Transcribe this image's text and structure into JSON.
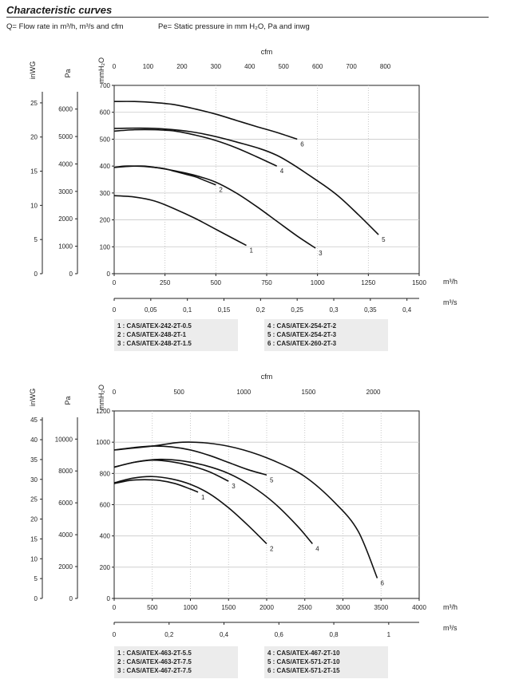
{
  "header": {
    "title": "Characteristic curves",
    "subtitle_left": "Q= Flow rate in m³/h, m³/s and cfm",
    "subtitle_right": "Pe= Static pressure in mm H₂O, Pa and inwg"
  },
  "chart_data": [
    {
      "type": "line",
      "title": "",
      "xlabel": "m³/h",
      "ylabel": "mmH₂O",
      "xlim": [
        0,
        1500
      ],
      "ylim": [
        0,
        700
      ],
      "x_ticks": [
        0,
        250,
        500,
        750,
        1000,
        1250,
        1500
      ],
      "y_ticks": [
        0,
        100,
        200,
        300,
        400,
        500,
        600,
        700
      ],
      "grid": true,
      "secondary_axes": {
        "cfm": {
          "label": "cfm",
          "ticks": [
            0,
            100,
            200,
            300,
            400,
            500,
            600,
            700,
            800
          ]
        },
        "m3s": {
          "label": "m³/s",
          "ticks": [
            "0",
            "0,05",
            "0,1",
            "0,15",
            "0,2",
            "0,25",
            "0,3",
            "0,35",
            "0,4"
          ]
        },
        "inwg": {
          "label": "inWG",
          "ticks": [
            0,
            5,
            10,
            15,
            20,
            25
          ]
        },
        "pa": {
          "label": "Pa",
          "ticks": [
            0,
            1000,
            2000,
            3000,
            4000,
            5000,
            6000
          ]
        }
      },
      "legend": {
        "placement": "bottom",
        "col1": [
          "1 : CAS/ATEX-242-2T-0.5",
          "2 : CAS/ATEX-248-2T-1",
          "3 : CAS/ATEX-248-2T-1.5"
        ],
        "col2": [
          "4 : CAS/ATEX-254-2T-2",
          "5 : CAS/ATEX-254-2T-3",
          "6 : CAS/ATEX-260-2T-3"
        ]
      },
      "series": [
        {
          "name": "1",
          "x": [
            0,
            100,
            200,
            300,
            400,
            500,
            600,
            650
          ],
          "y": [
            290,
            285,
            270,
            240,
            205,
            165,
            125,
            105
          ]
        },
        {
          "name": "2",
          "x": [
            0,
            50,
            100,
            150,
            200,
            250,
            300,
            350,
            400,
            450,
            500
          ],
          "y": [
            395,
            400,
            400,
            400,
            395,
            390,
            380,
            370,
            360,
            345,
            330
          ]
        },
        {
          "name": "3",
          "x": [
            0,
            100,
            200,
            300,
            400,
            500,
            600,
            700,
            800,
            900,
            990
          ],
          "y": [
            395,
            400,
            395,
            382,
            365,
            340,
            300,
            250,
            195,
            140,
            95
          ]
        },
        {
          "name": "4",
          "x": [
            0,
            100,
            200,
            300,
            400,
            500,
            600,
            700,
            800
          ],
          "y": [
            530,
            535,
            535,
            530,
            515,
            495,
            468,
            435,
            400
          ]
        },
        {
          "name": "5",
          "x": [
            0,
            200,
            400,
            600,
            800,
            1000,
            1100,
            1200,
            1300
          ],
          "y": [
            540,
            540,
            525,
            490,
            440,
            345,
            290,
            220,
            145
          ]
        },
        {
          "name": "6",
          "x": [
            0,
            100,
            200,
            300,
            400,
            500,
            600,
            700,
            800,
            900
          ],
          "y": [
            640,
            640,
            636,
            628,
            612,
            593,
            570,
            547,
            525,
            500
          ]
        }
      ]
    },
    {
      "type": "line",
      "title": "",
      "xlabel": "m³/h",
      "ylabel": "mmH₂O",
      "xlim": [
        0,
        4000
      ],
      "ylim": [
        0,
        1200
      ],
      "x_ticks": [
        0,
        500,
        1000,
        1500,
        2000,
        2500,
        3000,
        3500,
        4000
      ],
      "y_ticks": [
        0,
        200,
        400,
        600,
        800,
        1000,
        1200
      ],
      "grid": true,
      "secondary_axes": {
        "cfm": {
          "label": "cfm",
          "ticks": [
            0,
            500,
            1000,
            1500,
            2000
          ]
        },
        "m3s": {
          "label": "m³/s",
          "ticks": [
            "0",
            "0,2",
            "0,4",
            "0,6",
            "0,8",
            "1"
          ]
        },
        "inwg": {
          "label": "inWG",
          "ticks": [
            0,
            5,
            10,
            15,
            20,
            25,
            30,
            35,
            40,
            45
          ]
        },
        "pa": {
          "label": "Pa",
          "ticks": [
            0,
            2000,
            4000,
            6000,
            8000,
            10000
          ]
        }
      },
      "legend": {
        "placement": "bottom",
        "col1": [
          "1 : CAS/ATEX-463-2T-5.5",
          "2 : CAS/ATEX-463-2T-7.5",
          "3 : CAS/ATEX-467-2T-7.5"
        ],
        "col2": [
          "4 : CAS/ATEX-467-2T-10",
          "5 : CAS/ATEX-571-2T-10",
          "6 : CAS/ATEX-571-2T-15"
        ]
      },
      "series": [
        {
          "name": "1",
          "x": [
            0,
            200,
            400,
            600,
            800,
            1000,
            1100
          ],
          "y": [
            735,
            755,
            760,
            755,
            735,
            700,
            680
          ]
        },
        {
          "name": "2",
          "x": [
            0,
            250,
            500,
            750,
            1000,
            1250,
            1500,
            1750,
            2000
          ],
          "y": [
            740,
            770,
            780,
            765,
            730,
            670,
            580,
            470,
            350
          ]
        },
        {
          "name": "3",
          "x": [
            0,
            250,
            500,
            750,
            1000,
            1250,
            1500
          ],
          "y": [
            840,
            870,
            885,
            875,
            850,
            810,
            750
          ]
        },
        {
          "name": "4",
          "x": [
            0,
            300,
            600,
            900,
            1200,
            1500,
            1800,
            2100,
            2400,
            2600
          ],
          "y": [
            840,
            875,
            890,
            880,
            850,
            800,
            720,
            610,
            465,
            350
          ]
        },
        {
          "name": "5",
          "x": [
            0,
            250,
            500,
            750,
            1000,
            1250,
            1500,
            1750,
            2000
          ],
          "y": [
            950,
            965,
            975,
            970,
            950,
            915,
            870,
            825,
            790
          ]
        },
        {
          "name": "6",
          "x": [
            0,
            500,
            900,
            1300,
            1700,
            2100,
            2500,
            2900,
            3200,
            3450
          ],
          "y": [
            950,
            975,
            1000,
            990,
            950,
            880,
            780,
            610,
            430,
            130
          ]
        }
      ]
    }
  ]
}
